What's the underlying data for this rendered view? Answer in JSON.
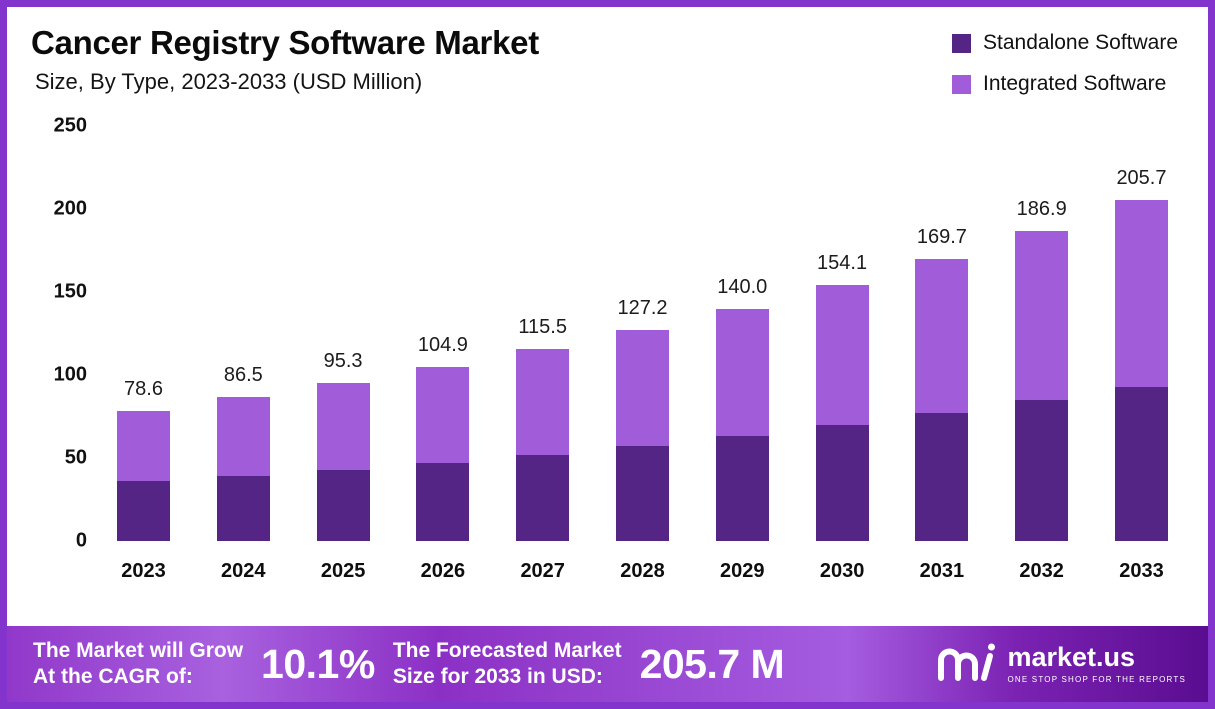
{
  "header": {
    "title": "Cancer Registry Software Market",
    "subtitle": "Size, By Type, 2023-2033 (USD Million)"
  },
  "legend": [
    {
      "label": "Standalone Software",
      "color": "#552586"
    },
    {
      "label": "Integrated Software",
      "color": "#a05cd9"
    }
  ],
  "chart_data": {
    "type": "bar",
    "stacked": true,
    "title": "Cancer Registry Software Market Size, By Type, 2023-2033 (USD Million)",
    "categories": [
      "2023",
      "2024",
      "2025",
      "2026",
      "2027",
      "2028",
      "2029",
      "2030",
      "2031",
      "2032",
      "2033"
    ],
    "series": [
      {
        "name": "Standalone Software",
        "color": "#552586",
        "values": [
          36,
          39,
          42.5,
          47,
          52,
          57,
          63,
          70,
          77,
          85,
          93
        ]
      },
      {
        "name": "Integrated Software",
        "color": "#a05cd9",
        "values": [
          42.6,
          47.5,
          52.8,
          57.9,
          63.5,
          70.2,
          77,
          84.1,
          92.7,
          101.9,
          112.7
        ]
      }
    ],
    "totals": [
      78.6,
      86.5,
      95.3,
      104.9,
      115.5,
      127.2,
      140.0,
      154.1,
      169.7,
      186.9,
      205.7
    ],
    "total_labels": [
      "78.6",
      "86.5",
      "95.3",
      "104.9",
      "115.5",
      "127.2",
      "140.0",
      "154.1",
      "169.7",
      "186.9",
      "205.7"
    ],
    "ylim": [
      0,
      250
    ],
    "yticks": [
      0,
      50,
      100,
      150,
      200,
      250
    ],
    "xlabel": "",
    "ylabel": "",
    "grid": false,
    "legend_position": "top-right"
  },
  "footer": {
    "cagr_label_line1": "The Market will Grow",
    "cagr_label_line2": "At the CAGR of:",
    "cagr_value": "10.1%",
    "forecast_label_line1": "The Forecasted Market",
    "forecast_label_line2": "Size for 2033 in USD:",
    "forecast_value": "205.7 M",
    "brand": "market.us",
    "brand_tagline": "ONE STOP SHOP FOR THE REPORTS"
  },
  "colors": {
    "standalone": "#552586",
    "integrated": "#a05cd9",
    "frame_border": "#8334cc",
    "banner_light": "#a861df",
    "banner_dark": "#5a0d90"
  }
}
